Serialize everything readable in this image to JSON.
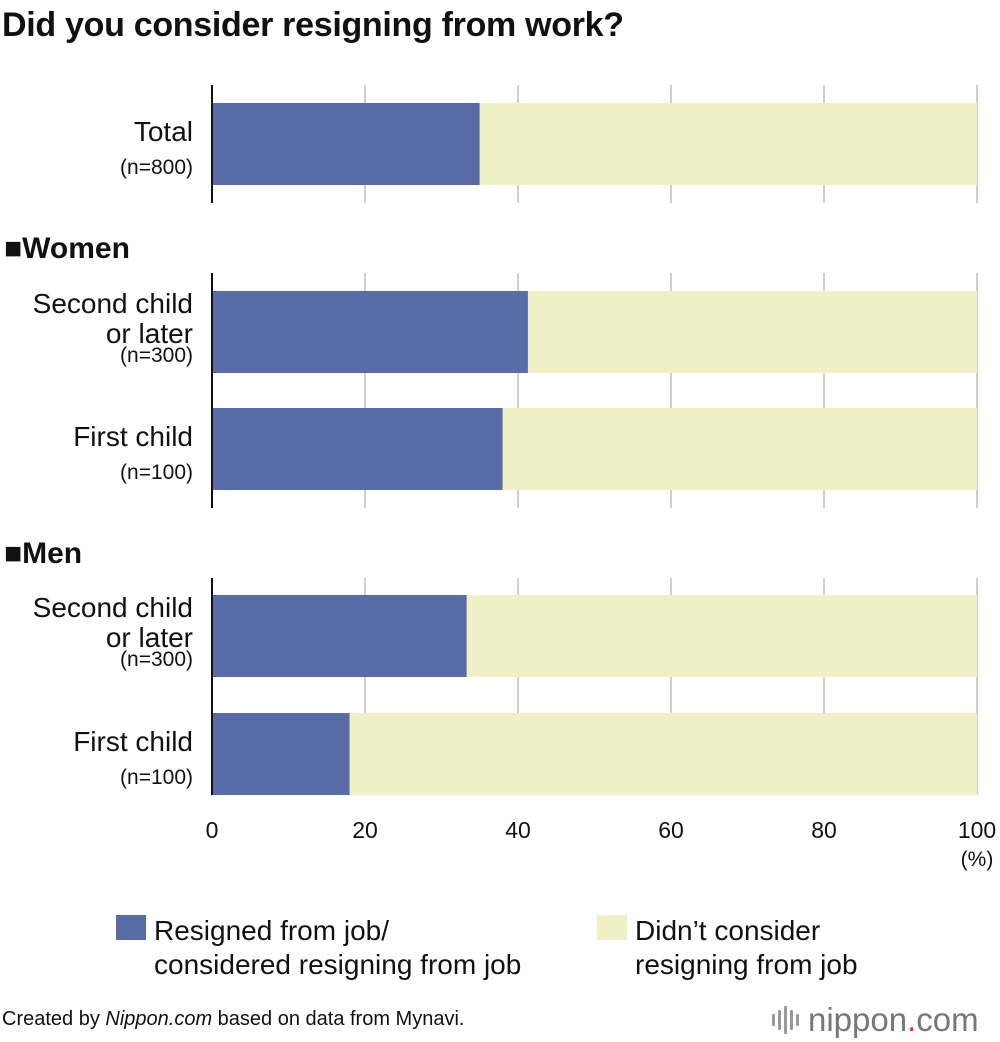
{
  "title": "Did you consider resigning from work?",
  "chart_data": {
    "type": "bar",
    "orientation": "horizontal",
    "stacked": true,
    "unit": "(%)",
    "xlim": [
      0,
      100
    ],
    "x_ticks": [
      "0",
      "20",
      "40",
      "60",
      "80",
      "100"
    ],
    "grid": true,
    "groups": [
      {
        "heading": "",
        "rows": [
          {
            "label_lines": [
              "Total"
            ],
            "n": "(n=800)",
            "resigned": 35.0,
            "not_considered": 65.0
          }
        ]
      },
      {
        "heading": "■Women",
        "rows": [
          {
            "label_lines": [
              "Second child",
              "or later"
            ],
            "n": "(n=300)",
            "resigned": 41.3,
            "not_considered": 58.7
          },
          {
            "label_lines": [
              "First child"
            ],
            "n": "(n=100)",
            "resigned": 38.0,
            "not_considered": 62.0
          }
        ]
      },
      {
        "heading": "■Men",
        "rows": [
          {
            "label_lines": [
              "Second child",
              "or later"
            ],
            "n": "(n=300)",
            "resigned": 33.3,
            "not_considered": 66.7
          },
          {
            "label_lines": [
              "First child"
            ],
            "n": "(n=100)",
            "resigned": 18.0,
            "not_considered": 82.0
          }
        ]
      }
    ],
    "series": [
      {
        "key": "resigned",
        "name_lines": [
          "Resigned from job/",
          "considered resigning from job"
        ],
        "color": "#596ca8"
      },
      {
        "key": "not_considered",
        "name_lines": [
          "Didn’t consider",
          "resigning from job"
        ],
        "color": "#f1efc6"
      }
    ],
    "legend_position": "bottom"
  },
  "credit": {
    "prefix": "Created by ",
    "site": "Nippon.com",
    "suffix": " based on data from Mynavi."
  },
  "logo": {
    "word": "nippon",
    "dot": ".",
    "tld": "com"
  }
}
